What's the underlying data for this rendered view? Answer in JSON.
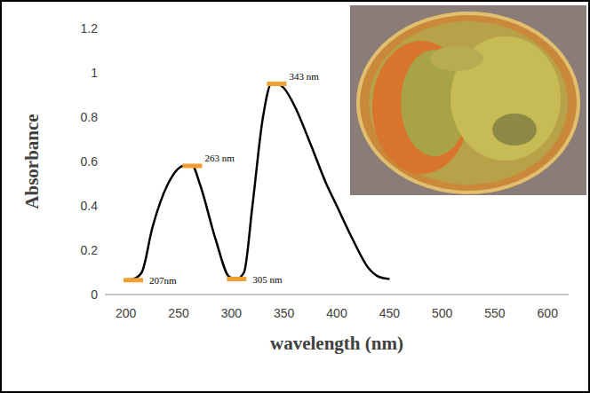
{
  "chart_data": {
    "type": "line",
    "x_label": "wavelength (nm)",
    "y_label": "Absorbance",
    "color": "#000000",
    "grid": false,
    "xlim": [
      180,
      620
    ],
    "xticks": [
      200,
      250,
      300,
      350,
      400,
      450,
      500,
      550,
      600
    ],
    "ylim": [
      0,
      1.2
    ],
    "yticks": [
      0,
      0.2,
      0.4,
      0.6,
      0.8,
      1,
      1.2
    ],
    "x": [
      200,
      207,
      215,
      225,
      240,
      255,
      263,
      270,
      285,
      298,
      305,
      312,
      320,
      330,
      338,
      343,
      350,
      360,
      375,
      390,
      400,
      415,
      430,
      440,
      450
    ],
    "values": [
      0.065,
      0.07,
      0.1,
      0.3,
      0.5,
      0.58,
      0.58,
      0.5,
      0.25,
      0.08,
      0.07,
      0.1,
      0.4,
      0.8,
      0.95,
      0.95,
      0.93,
      0.85,
      0.68,
      0.5,
      0.4,
      0.25,
      0.12,
      0.08,
      0.07
    ],
    "annotations": [
      {
        "x": 207,
        "y": 0.065,
        "label": "207nm"
      },
      {
        "x": 263,
        "y": 0.58,
        "label": "263 nm"
      },
      {
        "x": 305,
        "y": 0.07,
        "label": "305 nm"
      },
      {
        "x": 343,
        "y": 0.95,
        "label": "343 nm"
      }
    ]
  }
}
